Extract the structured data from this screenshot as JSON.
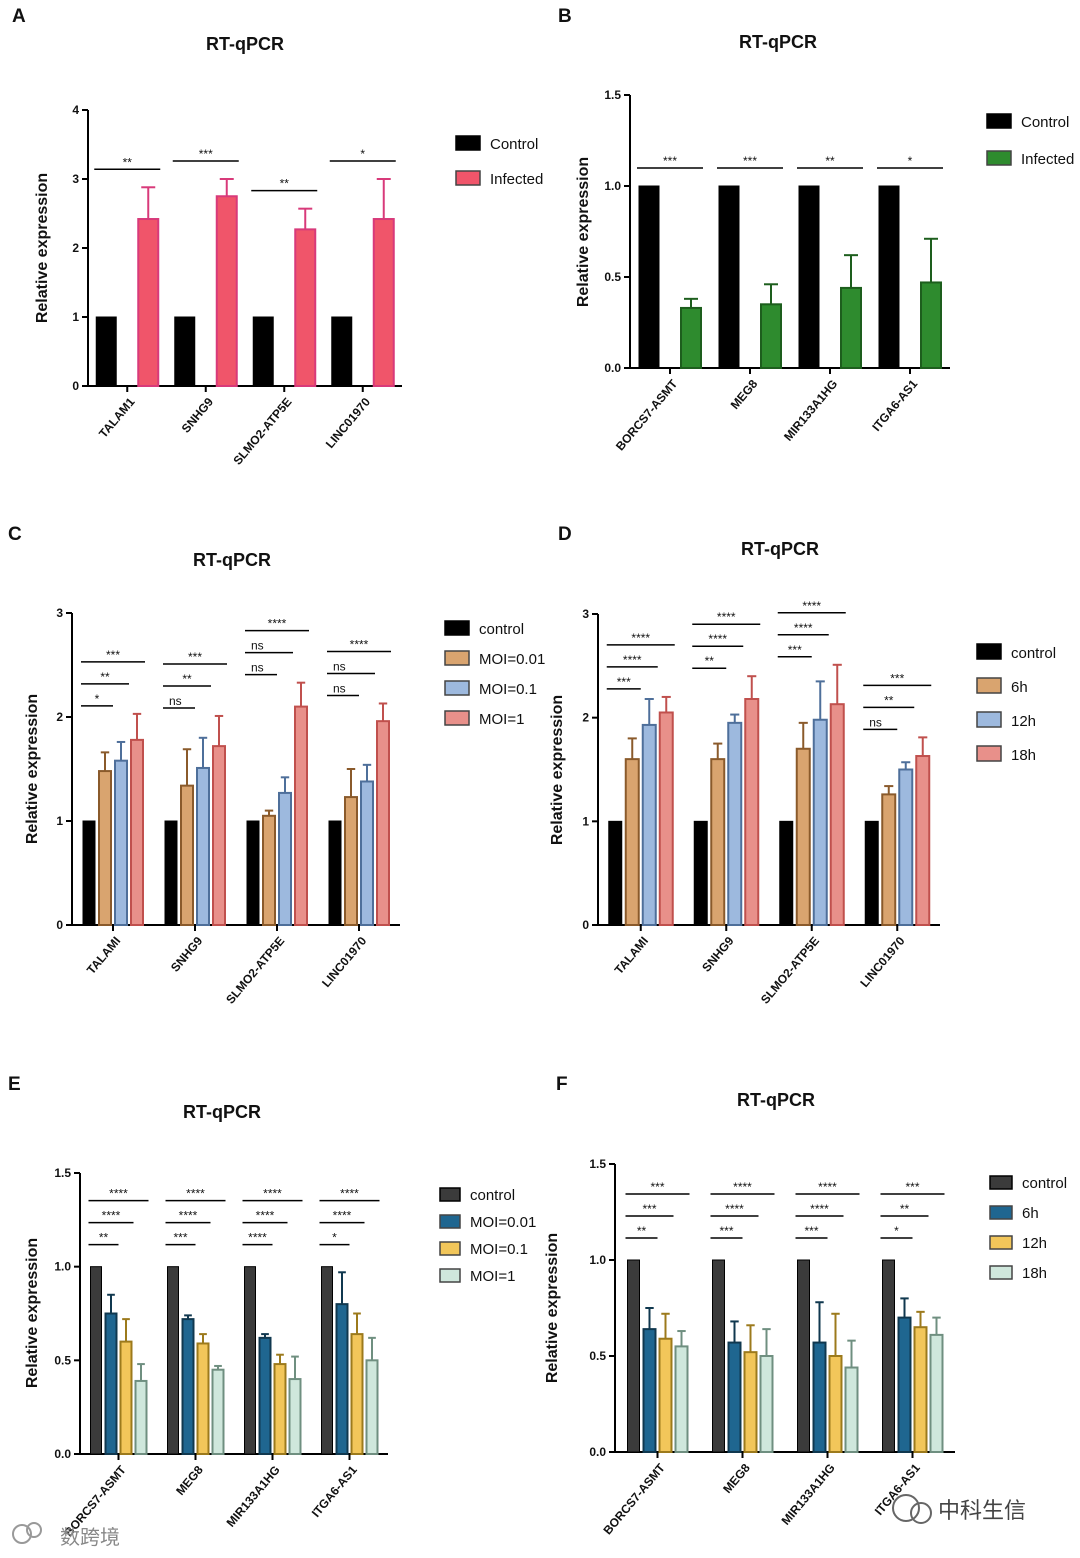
{
  "watermarks": {
    "left": "数跨境",
    "right": "中科生信"
  },
  "chart_data": [
    {
      "id": "A",
      "panel": "A",
      "type": "bar",
      "title": "RT-qPCR",
      "ylabel": "Relative expression",
      "ylim": [
        0,
        4
      ],
      "yticks": [
        0,
        1,
        2,
        3,
        4
      ],
      "ytick_labels": [
        "0",
        "1",
        "2",
        "3",
        "4"
      ],
      "categories": [
        "TALAM1",
        "SNHG9",
        "SLMO2-ATP5E",
        "LINC01970"
      ],
      "series": [
        {
          "name": "Control",
          "color": "#000000",
          "values": [
            1,
            1,
            1,
            1
          ],
          "errors": [
            0,
            0,
            0,
            0
          ]
        },
        {
          "name": "Infected",
          "color": "#f0556a",
          "values": [
            2.42,
            2.75,
            2.27,
            2.42
          ],
          "errors": [
            0.46,
            0.25,
            0.3,
            0.58
          ]
        }
      ],
      "significance": [
        {
          "group": 0,
          "from": 0,
          "to": 1,
          "label": "**"
        },
        {
          "group": 1,
          "from": 0,
          "to": 1,
          "label": "***"
        },
        {
          "group": 2,
          "from": 0,
          "to": 1,
          "label": "**"
        },
        {
          "group": 3,
          "from": 0,
          "to": 1,
          "label": "*"
        }
      ]
    },
    {
      "id": "B",
      "panel": "B",
      "type": "bar",
      "title": "RT-qPCR",
      "ylabel": "Relative expression",
      "ylim": [
        0,
        1.5
      ],
      "yticks": [
        0,
        0.5,
        1.0,
        1.5
      ],
      "ytick_labels": [
        "0.0",
        "0.5",
        "1.0",
        "1.5"
      ],
      "categories": [
        "BORCS7-ASMT",
        "MEG8",
        "MIR133A1HG",
        "ITGA6-AS1"
      ],
      "series": [
        {
          "name": "Control",
          "color": "#000000",
          "values": [
            1,
            1,
            1,
            1
          ],
          "errors": [
            0,
            0,
            0,
            0
          ]
        },
        {
          "name": "Infected",
          "color": "#2e8b2e",
          "values": [
            0.33,
            0.35,
            0.44,
            0.47
          ],
          "errors": [
            0.05,
            0.11,
            0.18,
            0.24
          ]
        }
      ],
      "significance": [
        {
          "group": 0,
          "from": 0,
          "to": 1,
          "label": "***"
        },
        {
          "group": 1,
          "from": 0,
          "to": 1,
          "label": "***"
        },
        {
          "group": 2,
          "from": 0,
          "to": 1,
          "label": "**"
        },
        {
          "group": 3,
          "from": 0,
          "to": 1,
          "label": "*"
        }
      ]
    },
    {
      "id": "C",
      "panel": "C",
      "type": "bar",
      "title": "RT-qPCR",
      "ylabel": "Relative expression",
      "ylim": [
        0,
        3
      ],
      "yticks": [
        0,
        1,
        2,
        3
      ],
      "ytick_labels": [
        "0",
        "1",
        "2",
        "3"
      ],
      "categories": [
        "TALAMI",
        "SNHG9",
        "SLMO2-ATP5E",
        "LINC01970"
      ],
      "series": [
        {
          "name": "control",
          "color": "#000000",
          "values": [
            1,
            1,
            1,
            1
          ],
          "errors": [
            0,
            0,
            0,
            0
          ]
        },
        {
          "name": "MOI=0.01",
          "color": "#d9a46f",
          "values": [
            1.48,
            1.34,
            1.05,
            1.23
          ],
          "errors": [
            0.18,
            0.35,
            0.05,
            0.27
          ]
        },
        {
          "name": "MOI=0.1",
          "color": "#9db9de",
          "values": [
            1.58,
            1.51,
            1.27,
            1.38
          ],
          "errors": [
            0.18,
            0.29,
            0.15,
            0.16
          ]
        },
        {
          "name": "MOI=1",
          "color": "#e8908a",
          "values": [
            1.78,
            1.72,
            2.1,
            1.96
          ],
          "errors": [
            0.25,
            0.29,
            0.23,
            0.17
          ]
        }
      ],
      "significance": [
        {
          "group": 0,
          "from": 0,
          "to": 1,
          "label": "*"
        },
        {
          "group": 0,
          "from": 0,
          "to": 2,
          "label": "**"
        },
        {
          "group": 0,
          "from": 0,
          "to": 3,
          "label": "***"
        },
        {
          "group": 1,
          "from": 0,
          "to": 1,
          "label": "ns"
        },
        {
          "group": 1,
          "from": 0,
          "to": 2,
          "label": "**"
        },
        {
          "group": 1,
          "from": 0,
          "to": 3,
          "label": "***"
        },
        {
          "group": 2,
          "from": 0,
          "to": 1,
          "label": "ns"
        },
        {
          "group": 2,
          "from": 0,
          "to": 2,
          "label": "ns"
        },
        {
          "group": 2,
          "from": 0,
          "to": 3,
          "label": "****"
        },
        {
          "group": 3,
          "from": 0,
          "to": 1,
          "label": "ns"
        },
        {
          "group": 3,
          "from": 0,
          "to": 2,
          "label": "ns"
        },
        {
          "group": 3,
          "from": 0,
          "to": 3,
          "label": "****"
        }
      ]
    },
    {
      "id": "D",
      "panel": "D",
      "type": "bar",
      "title": "RT-qPCR",
      "ylabel": "Relative expression",
      "ylim": [
        0,
        3
      ],
      "yticks": [
        0,
        1,
        2,
        3
      ],
      "ytick_labels": [
        "0",
        "1",
        "2",
        "3"
      ],
      "categories": [
        "TALAMI",
        "SNHG9",
        "SLMO2-ATP5E",
        "LINC01970"
      ],
      "series": [
        {
          "name": "control",
          "color": "#000000",
          "values": [
            1,
            1,
            1,
            1
          ],
          "errors": [
            0,
            0,
            0,
            0
          ]
        },
        {
          "name": "6h",
          "color": "#d9a46f",
          "values": [
            1.6,
            1.6,
            1.7,
            1.26
          ],
          "errors": [
            0.2,
            0.15,
            0.25,
            0.08
          ]
        },
        {
          "name": "12h",
          "color": "#9db9de",
          "values": [
            1.93,
            1.95,
            1.98,
            1.5
          ],
          "errors": [
            0.25,
            0.08,
            0.37,
            0.07
          ]
        },
        {
          "name": "18h",
          "color": "#e8908a",
          "values": [
            2.05,
            2.18,
            2.13,
            1.63
          ],
          "errors": [
            0.15,
            0.22,
            0.38,
            0.18
          ]
        }
      ],
      "significance": [
        {
          "group": 0,
          "from": 0,
          "to": 1,
          "label": "***"
        },
        {
          "group": 0,
          "from": 0,
          "to": 2,
          "label": "****"
        },
        {
          "group": 0,
          "from": 0,
          "to": 3,
          "label": "****"
        },
        {
          "group": 1,
          "from": 0,
          "to": 1,
          "label": "**"
        },
        {
          "group": 1,
          "from": 0,
          "to": 2,
          "label": "****"
        },
        {
          "group": 1,
          "from": 0,
          "to": 3,
          "label": "****"
        },
        {
          "group": 2,
          "from": 0,
          "to": 1,
          "label": "***"
        },
        {
          "group": 2,
          "from": 0,
          "to": 2,
          "label": "****"
        },
        {
          "group": 2,
          "from": 0,
          "to": 3,
          "label": "****"
        },
        {
          "group": 3,
          "from": 0,
          "to": 1,
          "label": "ns"
        },
        {
          "group": 3,
          "from": 0,
          "to": 2,
          "label": "**"
        },
        {
          "group": 3,
          "from": 0,
          "to": 3,
          "label": "***"
        }
      ]
    },
    {
      "id": "E",
      "panel": "E",
      "type": "bar",
      "title": "RT-qPCR",
      "ylabel": "Relative expression",
      "ylim": [
        0,
        1.5
      ],
      "yticks": [
        0,
        0.5,
        1.0,
        1.5
      ],
      "ytick_labels": [
        "0.0",
        "0.5",
        "1.0",
        "1.5"
      ],
      "categories": [
        "BORCS7-ASMT",
        "MEG8",
        "MIR133A1HG",
        "ITGA6-AS1"
      ],
      "series": [
        {
          "name": "control",
          "color": "#3b3b3b",
          "values": [
            1,
            1,
            1,
            1
          ],
          "errors": [
            0,
            0,
            0,
            0
          ]
        },
        {
          "name": "MOI=0.01",
          "color": "#1f6690",
          "values": [
            0.75,
            0.72,
            0.62,
            0.8
          ],
          "errors": [
            0.1,
            0.02,
            0.02,
            0.17
          ]
        },
        {
          "name": "MOI=0.1",
          "color": "#f2c65a",
          "values": [
            0.6,
            0.59,
            0.48,
            0.64
          ],
          "errors": [
            0.12,
            0.05,
            0.05,
            0.11
          ]
        },
        {
          "name": "MOI=1",
          "color": "#cfe7dc",
          "values": [
            0.39,
            0.45,
            0.4,
            0.5
          ],
          "errors": [
            0.09,
            0.02,
            0.12,
            0.12
          ]
        }
      ],
      "significance": [
        {
          "group": 0,
          "from": 0,
          "to": 1,
          "label": "**"
        },
        {
          "group": 0,
          "from": 0,
          "to": 2,
          "label": "****"
        },
        {
          "group": 0,
          "from": 0,
          "to": 3,
          "label": "****"
        },
        {
          "group": 1,
          "from": 0,
          "to": 1,
          "label": "***"
        },
        {
          "group": 1,
          "from": 0,
          "to": 2,
          "label": "****"
        },
        {
          "group": 1,
          "from": 0,
          "to": 3,
          "label": "****"
        },
        {
          "group": 2,
          "from": 0,
          "to": 1,
          "label": "****"
        },
        {
          "group": 2,
          "from": 0,
          "to": 2,
          "label": "****"
        },
        {
          "group": 2,
          "from": 0,
          "to": 3,
          "label": "****"
        },
        {
          "group": 3,
          "from": 0,
          "to": 1,
          "label": "*"
        },
        {
          "group": 3,
          "from": 0,
          "to": 2,
          "label": "****"
        },
        {
          "group": 3,
          "from": 0,
          "to": 3,
          "label": "****"
        }
      ]
    },
    {
      "id": "F",
      "panel": "F",
      "type": "bar",
      "title": "RT-qPCR",
      "ylabel": "Relative expression",
      "ylim": [
        0,
        1.5
      ],
      "yticks": [
        0,
        0.5,
        1.0,
        1.5
      ],
      "ytick_labels": [
        "0.0",
        "0.5",
        "1.0",
        "1.5"
      ],
      "categories": [
        "BORCS7-ASMT",
        "MEG8",
        "MIR133A1HG",
        "ITGA6-AS1"
      ],
      "series": [
        {
          "name": "control",
          "color": "#3b3b3b",
          "values": [
            1,
            1,
            1,
            1
          ],
          "errors": [
            0,
            0,
            0,
            0
          ]
        },
        {
          "name": "6h",
          "color": "#1f6690",
          "values": [
            0.64,
            0.57,
            0.57,
            0.7
          ],
          "errors": [
            0.11,
            0.11,
            0.21,
            0.1
          ]
        },
        {
          "name": "12h",
          "color": "#f2c65a",
          "values": [
            0.59,
            0.52,
            0.5,
            0.65
          ],
          "errors": [
            0.13,
            0.14,
            0.22,
            0.08
          ]
        },
        {
          "name": "18h",
          "color": "#cfe7dc",
          "values": [
            0.55,
            0.5,
            0.44,
            0.61
          ],
          "errors": [
            0.08,
            0.14,
            0.14,
            0.09
          ]
        }
      ],
      "significance": [
        {
          "group": 0,
          "from": 0,
          "to": 1,
          "label": "**"
        },
        {
          "group": 0,
          "from": 0,
          "to": 2,
          "label": "***"
        },
        {
          "group": 0,
          "from": 0,
          "to": 3,
          "label": "***"
        },
        {
          "group": 1,
          "from": 0,
          "to": 1,
          "label": "***"
        },
        {
          "group": 1,
          "from": 0,
          "to": 2,
          "label": "****"
        },
        {
          "group": 1,
          "from": 0,
          "to": 3,
          "label": "****"
        },
        {
          "group": 2,
          "from": 0,
          "to": 1,
          "label": "***"
        },
        {
          "group": 2,
          "from": 0,
          "to": 2,
          "label": "****"
        },
        {
          "group": 2,
          "from": 0,
          "to": 3,
          "label": "****"
        },
        {
          "group": 3,
          "from": 0,
          "to": 1,
          "label": "*"
        },
        {
          "group": 3,
          "from": 0,
          "to": 2,
          "label": "**"
        },
        {
          "group": 3,
          "from": 0,
          "to": 3,
          "label": "***"
        }
      ]
    }
  ]
}
